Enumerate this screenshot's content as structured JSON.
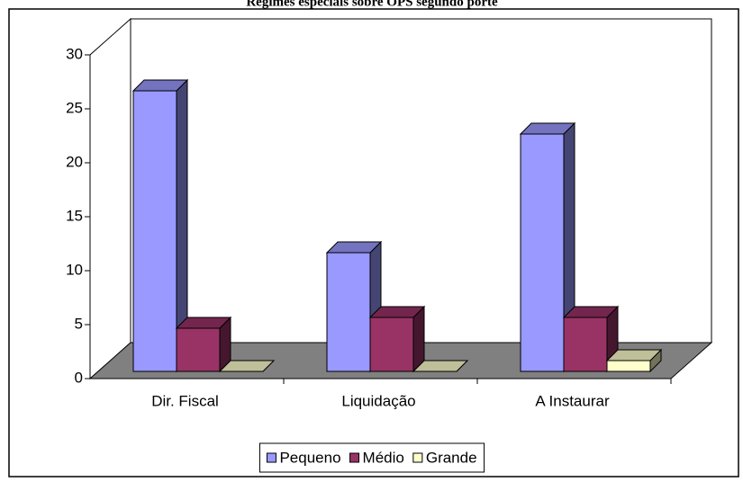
{
  "chart_data": {
    "type": "bar3d",
    "title": "Regimes especiais sobre OPS segundo porte",
    "categories": [
      "Dir. Fiscal",
      "Liquidação",
      "A Instaurar"
    ],
    "series": [
      {
        "name": "Pequeno",
        "color": "#9999ff",
        "values": [
          26,
          11,
          22
        ]
      },
      {
        "name": "Médio",
        "color": "#993366",
        "values": [
          4,
          5,
          5
        ]
      },
      {
        "name": "Grande",
        "color": "#ffffcc",
        "values": [
          0,
          0,
          1
        ]
      }
    ],
    "ylim": [
      0,
      30
    ],
    "yticks": [
      0,
      5,
      10,
      15,
      20,
      25,
      30
    ],
    "legend": "bottom"
  }
}
